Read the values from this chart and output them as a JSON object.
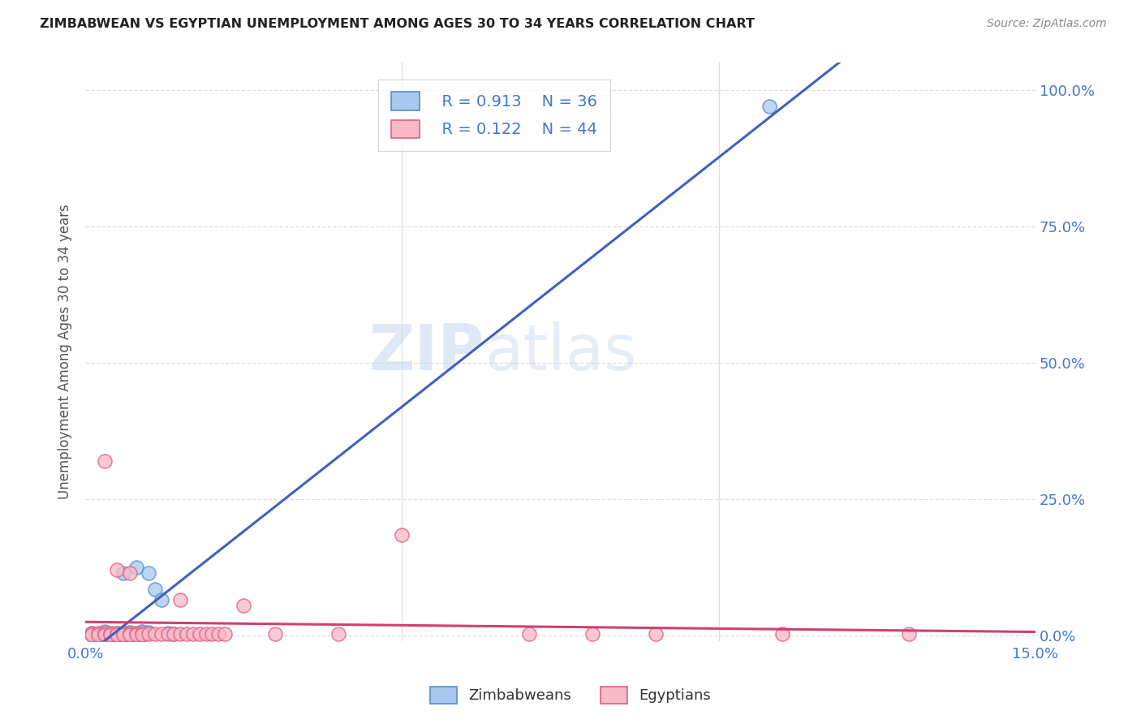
{
  "title": "ZIMBABWEAN VS EGYPTIAN UNEMPLOYMENT AMONG AGES 30 TO 34 YEARS CORRELATION CHART",
  "source": "Source: ZipAtlas.com",
  "ylabel": "Unemployment Among Ages 30 to 34 years",
  "watermark_zip": "ZIP",
  "watermark_atlas": "atlas",
  "xmin": 0.0,
  "xmax": 0.15,
  "ymin": 0.0,
  "ymax": 1.05,
  "legend_blue_r": "R = 0.913",
  "legend_blue_n": "N = 36",
  "legend_pink_r": "R = 0.122",
  "legend_pink_n": "N = 44",
  "blue_scatter_color": "#a8c8f0",
  "blue_edge_color": "#5090d0",
  "pink_scatter_color": "#f8b8c8",
  "pink_edge_color": "#e06080",
  "blue_line_color": "#4060c0",
  "pink_line_color": "#d04070",
  "grid_color": "#dddddd",
  "tick_color": "#4477cc",
  "ylabel_color": "#555555",
  "title_color": "#222222",
  "source_color": "#888888",
  "zim_x": [
    0.001,
    0.001,
    0.002,
    0.002,
    0.003,
    0.003,
    0.003,
    0.004,
    0.004,
    0.005,
    0.005,
    0.005,
    0.006,
    0.006,
    0.006,
    0.007,
    0.007,
    0.008,
    0.008,
    0.009,
    0.009,
    0.01,
    0.01,
    0.011,
    0.012,
    0.013,
    0.014,
    0.002,
    0.003,
    0.004,
    0.005,
    0.006,
    0.003,
    0.005,
    0.007,
    0.108
  ],
  "zim_y": [
    0.004,
    0.002,
    0.003,
    0.001,
    0.003,
    0.007,
    0.001,
    0.004,
    0.001,
    0.004,
    0.002,
    0.001,
    0.004,
    0.001,
    0.115,
    0.006,
    0.001,
    0.005,
    0.125,
    0.007,
    0.001,
    0.006,
    0.115,
    0.085,
    0.065,
    0.004,
    0.003,
    0.0,
    0.0,
    0.0,
    0.0,
    0.0,
    0.0,
    0.0,
    0.0,
    0.97
  ],
  "egy_x": [
    0.001,
    0.001,
    0.002,
    0.002,
    0.003,
    0.003,
    0.004,
    0.004,
    0.005,
    0.005,
    0.006,
    0.006,
    0.007,
    0.007,
    0.008,
    0.008,
    0.009,
    0.009,
    0.01,
    0.011,
    0.012,
    0.013,
    0.014,
    0.015,
    0.016,
    0.017,
    0.018,
    0.019,
    0.02,
    0.021,
    0.022,
    0.003,
    0.005,
    0.007,
    0.015,
    0.025,
    0.03,
    0.04,
    0.05,
    0.07,
    0.09,
    0.11,
    0.13,
    0.08
  ],
  "egy_y": [
    0.004,
    0.002,
    0.004,
    0.002,
    0.004,
    0.002,
    0.004,
    0.002,
    0.004,
    0.002,
    0.004,
    0.002,
    0.004,
    0.002,
    0.004,
    0.002,
    0.004,
    0.002,
    0.003,
    0.003,
    0.003,
    0.003,
    0.003,
    0.003,
    0.003,
    0.003,
    0.003,
    0.003,
    0.003,
    0.003,
    0.003,
    0.32,
    0.12,
    0.115,
    0.065,
    0.055,
    0.003,
    0.003,
    0.185,
    0.003,
    0.003,
    0.003,
    0.003,
    0.003
  ]
}
